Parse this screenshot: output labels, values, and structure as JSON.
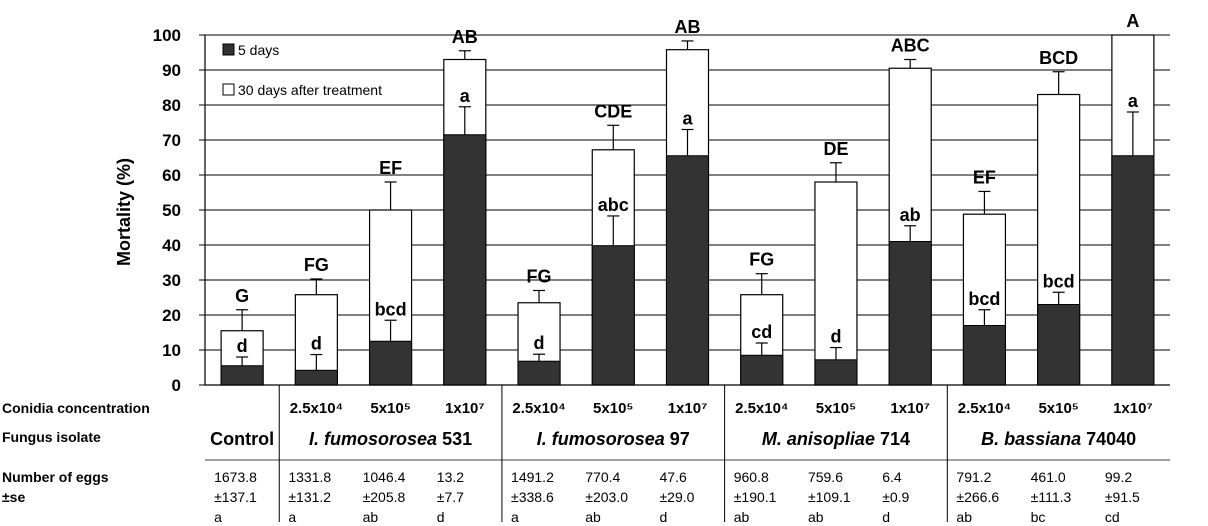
{
  "chart_data": {
    "type": "bar",
    "ylabel": "Mortality (%)",
    "ylim": [
      0,
      100
    ],
    "yticks": [
      "0",
      "10",
      "20",
      "30",
      "40",
      "50",
      "60",
      "70",
      "80",
      "90",
      "100"
    ],
    "grid": "horizontal",
    "legend_position": "top-left",
    "series": [
      {
        "name": "5 days",
        "color": "#333333",
        "values": [
          5.5,
          4.2,
          12.5,
          71.5,
          6.8,
          39.8,
          65.5,
          8.5,
          7.2,
          41.0,
          17.0,
          23.0,
          65.5
        ],
        "error": [
          2.5,
          4.5,
          6.0,
          8.0,
          2.0,
          8.5,
          7.5,
          3.5,
          3.5,
          4.5,
          4.5,
          3.5,
          12.5
        ]
      },
      {
        "name": "30 days after treatment",
        "color": "#ffffff",
        "values": [
          15.5,
          25.8,
          50.0,
          93.0,
          23.5,
          67.2,
          95.8,
          25.8,
          58.0,
          90.5,
          48.8,
          83.0,
          100
        ],
        "error": [
          6.0,
          4.5,
          8.0,
          2.5,
          3.5,
          7.0,
          2.5,
          6.0,
          5.5,
          2.5,
          6.5,
          6.5,
          0
        ]
      }
    ],
    "top_letters": [
      "G",
      "FG",
      "EF",
      "AB",
      "FG",
      "CDE",
      "AB",
      "FG",
      "DE",
      "ABC",
      "EF",
      "BCD",
      "A"
    ],
    "inner_letters": [
      "d",
      "d",
      "bcd",
      "a",
      "d",
      "abc",
      "a",
      "cd",
      "d",
      "ab",
      "bcd",
      "bcd",
      "a"
    ],
    "row_labels": {
      "conidia": "Conidia concentration",
      "isolate": "Fungus isolate",
      "eggs": "Number of eggs",
      "se": "±se"
    },
    "concentrations": [
      "",
      "2.5x10⁴",
      "5x10⁵",
      "1x10⁷",
      "2.5x10⁴",
      "5x10⁵",
      "1x10⁷",
      "2.5x10⁴",
      "5x10⁵",
      "1x10⁷",
      "2.5x10⁴",
      "5x10⁵",
      "1x10⁷"
    ],
    "groups": [
      {
        "genus": "",
        "rest": "Control"
      },
      {
        "genus": "I. fumosorosea",
        "rest": " 531"
      },
      {
        "genus": "I. fumosorosea",
        "rest": " 97"
      },
      {
        "genus": "M. anisopliae",
        "rest": " 714"
      },
      {
        "genus": "B. bassiana",
        "rest": " 74040"
      }
    ],
    "eggs_mean": [
      "1673.8",
      "1331.8",
      "1046.4",
      "13.2",
      "1491.2",
      "770.4",
      "47.6",
      "960.8",
      "759.6",
      "6.4",
      "791.2",
      "461.0",
      "99.2"
    ],
    "eggs_se": [
      "±137.1",
      "±131.2",
      "±205.8",
      "±7.7",
      "±338.6",
      "±203.0",
      "±29.0",
      "±190.1",
      "±109.1",
      "±0.9",
      "±266.6",
      "±111.3",
      "±91.5"
    ],
    "eggs_letter": [
      "a",
      "a",
      "ab",
      "d",
      "a",
      "ab",
      "d",
      "ab",
      "ab",
      "d",
      "ab",
      "bc",
      "cd"
    ]
  }
}
